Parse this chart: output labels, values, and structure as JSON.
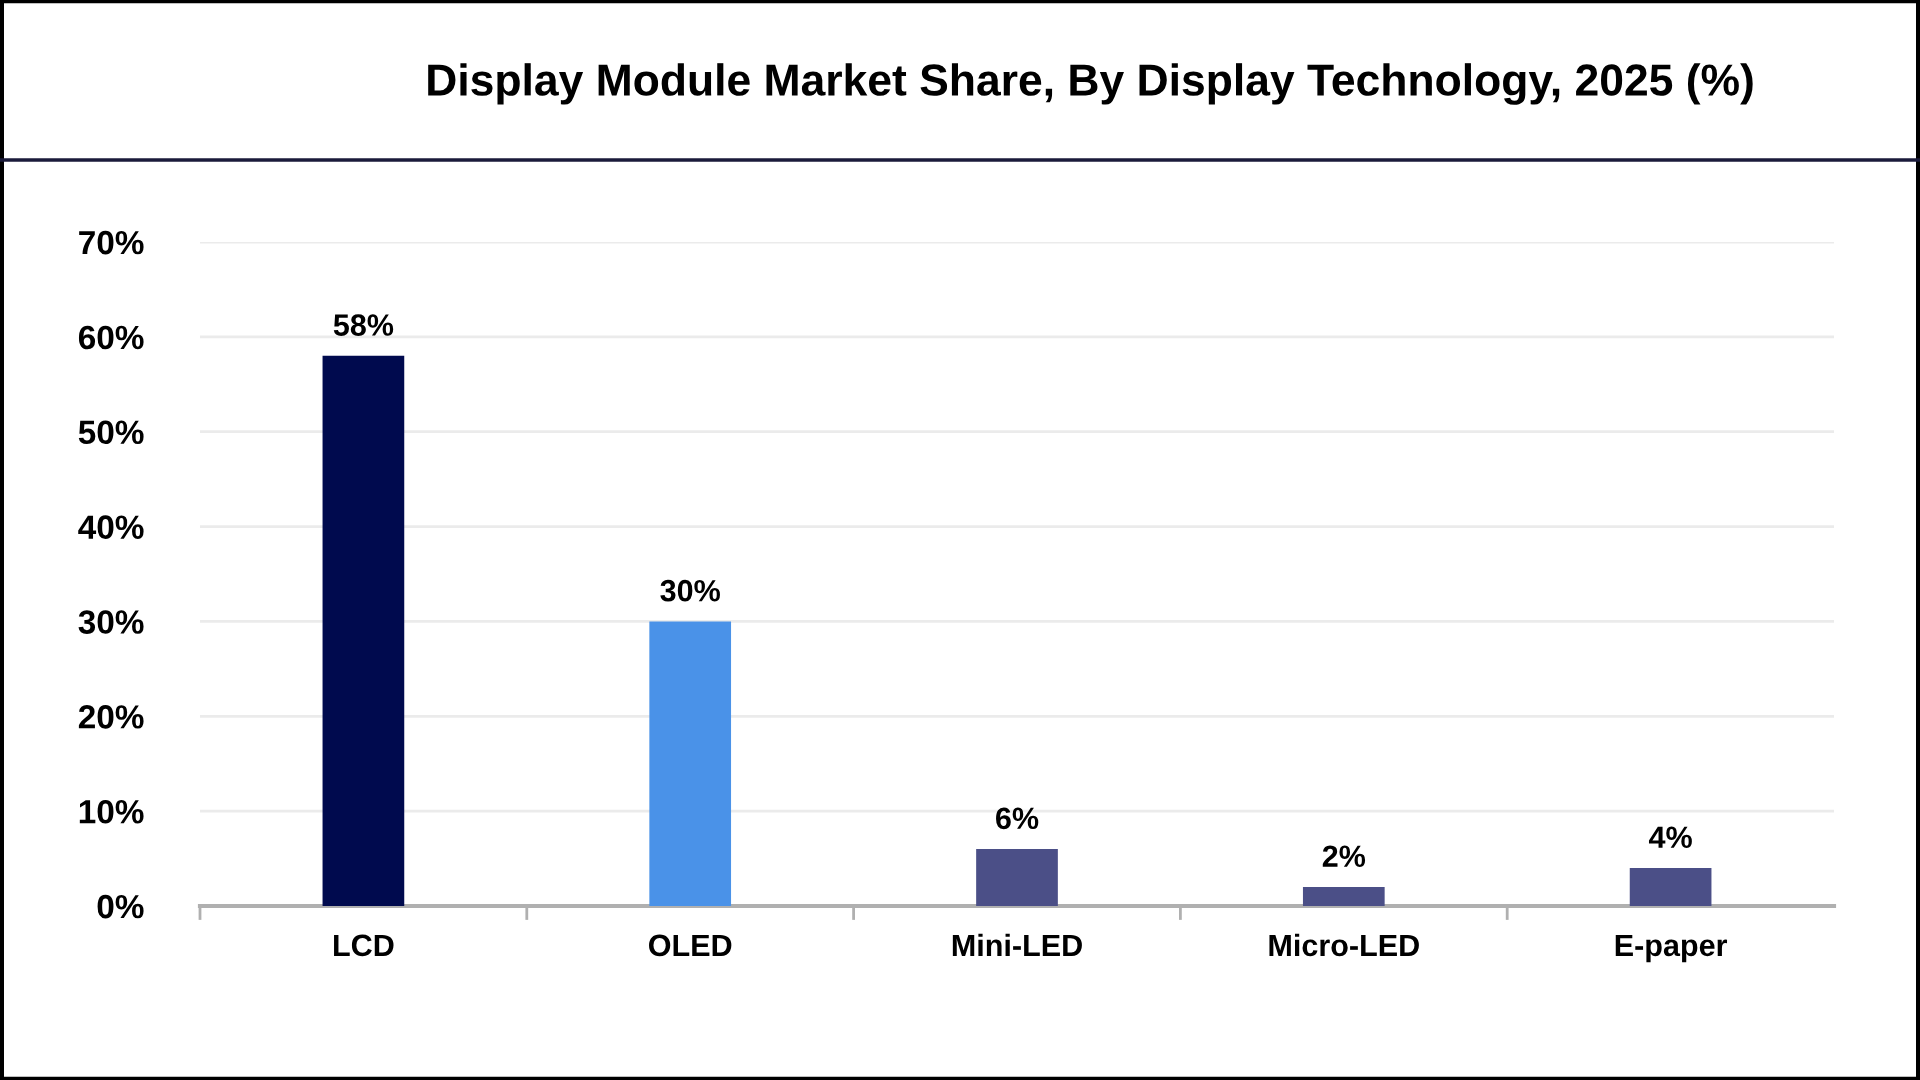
{
  "chart_data": {
    "type": "bar",
    "title": "Display Module Market Share, By Display Technology, 2025 (%)",
    "categories": [
      "LCD",
      "OLED",
      "Mini-LED",
      "Micro-LED",
      "E-paper"
    ],
    "values": [
      58,
      30,
      6,
      2,
      4
    ],
    "colors": [
      "#000a4e",
      "#4a92e8",
      "#4b4f87",
      "#4b4f87",
      "#4b4f87"
    ],
    "value_labels": [
      "58%",
      "30%",
      "6%",
      "2%",
      "4%"
    ],
    "ylim": [
      0,
      70
    ],
    "yticks": [
      {
        "value": 0,
        "label": "0%"
      },
      {
        "value": 10,
        "label": "10%"
      },
      {
        "value": 20,
        "label": "20%"
      },
      {
        "value": 30,
        "label": "30%"
      },
      {
        "value": 40,
        "label": "40%"
      },
      {
        "value": 50,
        "label": "50%"
      },
      {
        "value": 60,
        "label": "60%"
      },
      {
        "value": 70,
        "label": "70%"
      }
    ],
    "grid": "y",
    "legend": false
  }
}
